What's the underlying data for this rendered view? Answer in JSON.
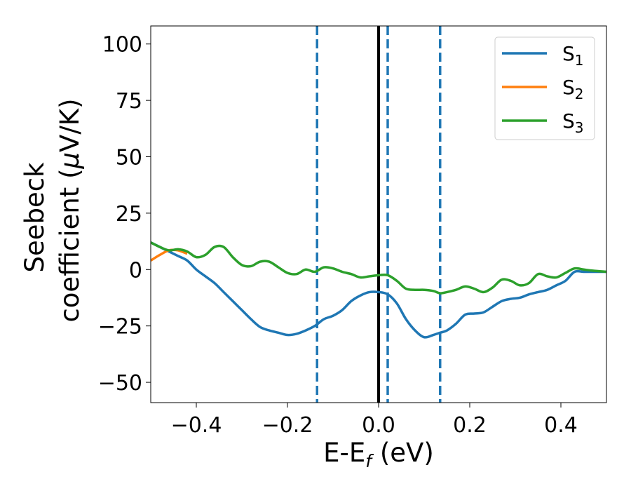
{
  "chart_data": {
    "type": "line",
    "title": "",
    "xlabel": {
      "main": "E-E",
      "sub": "f",
      "unit": " (eV)"
    },
    "ylabel": {
      "line1": "Seebeck",
      "line2_prefix": "coefficient  (",
      "line2_mu": "μ",
      "line2_suffix": "V/K)"
    },
    "xlim": [
      -0.5,
      0.5
    ],
    "ylim": [
      -59,
      108
    ],
    "xticks": [
      -0.4,
      -0.2,
      0.0,
      0.2,
      0.4
    ],
    "xtick_labels": [
      "−0.4",
      "−0.2",
      "0.0",
      "0.2",
      "0.4"
    ],
    "yticks": [
      100,
      75,
      50,
      25,
      0,
      -25,
      -50
    ],
    "ytick_labels": [
      "100",
      "75",
      "50",
      "25",
      "0",
      "−25",
      "−50"
    ],
    "legend_position": "top-right",
    "colors": {
      "s1": "#1f77b4",
      "s2": "#ff7f0e",
      "s3": "#2ca02c",
      "fermi": "#000000",
      "dashed": "#1f77b4"
    },
    "vertical_lines": [
      {
        "x": 0.0,
        "style": "solid",
        "color": "#000000"
      },
      {
        "x": -0.135,
        "style": "dashed",
        "color": "#1f77b4"
      },
      {
        "x": 0.02,
        "style": "dashed",
        "color": "#1f77b4"
      },
      {
        "x": 0.135,
        "style": "dashed",
        "color": "#1f77b4"
      }
    ],
    "series": [
      {
        "name": "S",
        "sub": "1",
        "color": "#1f77b4",
        "x": [
          -0.5,
          -0.48,
          -0.46,
          -0.44,
          -0.42,
          -0.4,
          -0.38,
          -0.36,
          -0.34,
          -0.32,
          -0.3,
          -0.28,
          -0.26,
          -0.24,
          -0.22,
          -0.2,
          -0.18,
          -0.16,
          -0.14,
          -0.12,
          -0.1,
          -0.08,
          -0.06,
          -0.04,
          -0.02,
          0.0,
          0.02,
          0.04,
          0.06,
          0.08,
          0.1,
          0.12,
          0.135,
          0.15,
          0.17,
          0.19,
          0.21,
          0.23,
          0.25,
          0.27,
          0.29,
          0.31,
          0.33,
          0.35,
          0.37,
          0.39,
          0.41,
          0.43,
          0.45,
          0.47,
          0.5
        ],
        "y": [
          12,
          10,
          8,
          6,
          4,
          0,
          -3,
          -6,
          -10,
          -14,
          -18,
          -22,
          -25.5,
          -27,
          -28,
          -29,
          -28.5,
          -27,
          -25,
          -22,
          -20.5,
          -18,
          -14,
          -11.5,
          -10,
          -10,
          -11,
          -15,
          -22,
          -27,
          -30,
          -29,
          -28,
          -27,
          -24,
          -20,
          -19.5,
          -19,
          -16.5,
          -14,
          -13,
          -12.5,
          -11,
          -10,
          -9,
          -7,
          -5,
          -1,
          -1,
          -1,
          -1
        ]
      },
      {
        "name": "S",
        "sub": "2",
        "color": "#ff7f0e",
        "x": [
          -0.5,
          -0.48,
          -0.46,
          -0.44,
          -0.42
        ],
        "y": [
          4,
          6.5,
          8.5,
          8.5,
          7
        ]
      },
      {
        "name": "S",
        "sub": "3",
        "color": "#2ca02c",
        "x": [
          -0.5,
          -0.48,
          -0.46,
          -0.44,
          -0.42,
          -0.4,
          -0.38,
          -0.36,
          -0.34,
          -0.32,
          -0.3,
          -0.28,
          -0.26,
          -0.24,
          -0.22,
          -0.2,
          -0.18,
          -0.16,
          -0.14,
          -0.12,
          -0.1,
          -0.08,
          -0.06,
          -0.04,
          -0.02,
          0.0,
          0.02,
          0.04,
          0.06,
          0.08,
          0.1,
          0.12,
          0.135,
          0.15,
          0.17,
          0.19,
          0.21,
          0.23,
          0.25,
          0.27,
          0.29,
          0.31,
          0.33,
          0.35,
          0.37,
          0.39,
          0.41,
          0.43,
          0.45,
          0.47,
          0.5
        ],
        "y": [
          12,
          10,
          8.5,
          9,
          8,
          5.5,
          6.5,
          10,
          10,
          5.5,
          2,
          1.5,
          3.5,
          3.5,
          1,
          -1.5,
          -2,
          0,
          -1,
          1,
          0.5,
          -1,
          -2,
          -3.5,
          -3,
          -2.5,
          -2.5,
          -5,
          -8.5,
          -9,
          -9,
          -9.5,
          -10.5,
          -10,
          -9,
          -7.5,
          -8.5,
          -10,
          -8,
          -4.5,
          -5,
          -7,
          -6,
          -2,
          -3,
          -3.5,
          -1.5,
          0.5,
          0,
          -0.5,
          -1
        ]
      }
    ]
  }
}
